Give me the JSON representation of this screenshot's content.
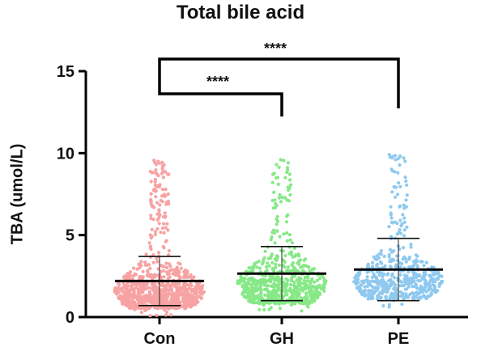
{
  "chart_data": {
    "type": "scatter",
    "subtype": "beeswarm",
    "title": "Total bile acid",
    "xlabel": "",
    "ylabel": "TBA (umol/L)",
    "ylim": [
      0,
      15
    ],
    "yticks": [
      0,
      5,
      10,
      15
    ],
    "categories": [
      "Con",
      "GH",
      "PE"
    ],
    "series": [
      {
        "category": "Con",
        "color": "#f7a3a3",
        "n": 900,
        "min": 0.05,
        "max": 9.6,
        "mean": 2.2,
        "sd_upper": 3.7,
        "sd_lower": 0.7,
        "mode": 1.6
      },
      {
        "category": "GH",
        "color": "#86e886",
        "n": 700,
        "min": 0.3,
        "max": 9.7,
        "mean": 2.65,
        "sd_upper": 4.3,
        "sd_lower": 1.0,
        "mode": 2.0
      },
      {
        "category": "PE",
        "color": "#8fc9ef",
        "n": 520,
        "min": 0.6,
        "max": 10.0,
        "mean": 2.9,
        "sd_upper": 4.8,
        "sd_lower": 1.0,
        "mode": 2.2
      }
    ],
    "comparisons": [
      {
        "from": "Con",
        "to": "GH",
        "label": "****"
      },
      {
        "from": "Con",
        "to": "PE",
        "label": "****"
      }
    ],
    "grid": false,
    "legend": "none"
  }
}
